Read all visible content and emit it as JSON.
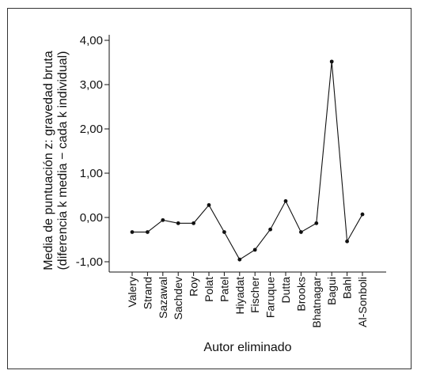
{
  "chart_data": {
    "type": "line",
    "title": "",
    "ylabel_lines": [
      "Media de puntuación z: gravedad bruta",
      "(diferencia k media − cada k individual)"
    ],
    "xlabel": "Autor eliminado",
    "categories": [
      "Valery",
      "Strand",
      "Sazawal",
      "Sachdev",
      "Roy",
      "Polat",
      "Patel",
      "Hiyadat",
      "Fischer",
      "Faruque",
      "Dutta",
      "Brooks",
      "Bhatnagar",
      "Bagui",
      "Bahl",
      "Al-Sonboli"
    ],
    "series": [
      {
        "values": [
          -0.33,
          -0.33,
          -0.06,
          -0.13,
          -0.13,
          0.28,
          -0.33,
          -0.95,
          -0.73,
          -0.27,
          0.37,
          -0.33,
          -0.13,
          3.52,
          -0.54,
          0.07
        ]
      }
    ],
    "ylim": [
      -1.3,
      4.2
    ],
    "yticks": [
      -1,
      0,
      1,
      2,
      3,
      4
    ],
    "ytick_labels": [
      "-1,00",
      "0,00",
      "1,00",
      "2,00",
      "3,00",
      "4,00"
    ],
    "grid": false,
    "legend": "none"
  }
}
